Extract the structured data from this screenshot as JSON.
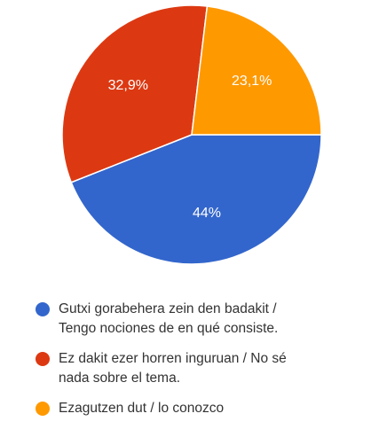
{
  "chart_data": {
    "type": "pie",
    "slices": [
      {
        "label": "Gutxi gorabehera zein den badakit / Tengo nociones de en qué consiste.",
        "value": 44,
        "display": "44%",
        "color": "#3366cc"
      },
      {
        "label": "Ez dakit ezer horren inguruan / No sé nada sobre el tema.",
        "value": 32.9,
        "display": "32,9%",
        "color": "#dc3912"
      },
      {
        "label": "Ezagutzen dut / lo conozco",
        "value": 23.1,
        "display": "23,1%",
        "color": "#ff9900"
      }
    ],
    "legend": {
      "position": "bottom",
      "items": [
        {
          "line1": "Gutxi gorabehera zein den badakit /",
          "line2": "Tengo nociones de en qué consiste."
        },
        {
          "line1": "Ez dakit ezer horren inguruan / No sé",
          "line2": "nada sobre el tema."
        },
        {
          "line1": "Ezagutzen dut / lo conozco",
          "line2": ""
        }
      ]
    }
  }
}
